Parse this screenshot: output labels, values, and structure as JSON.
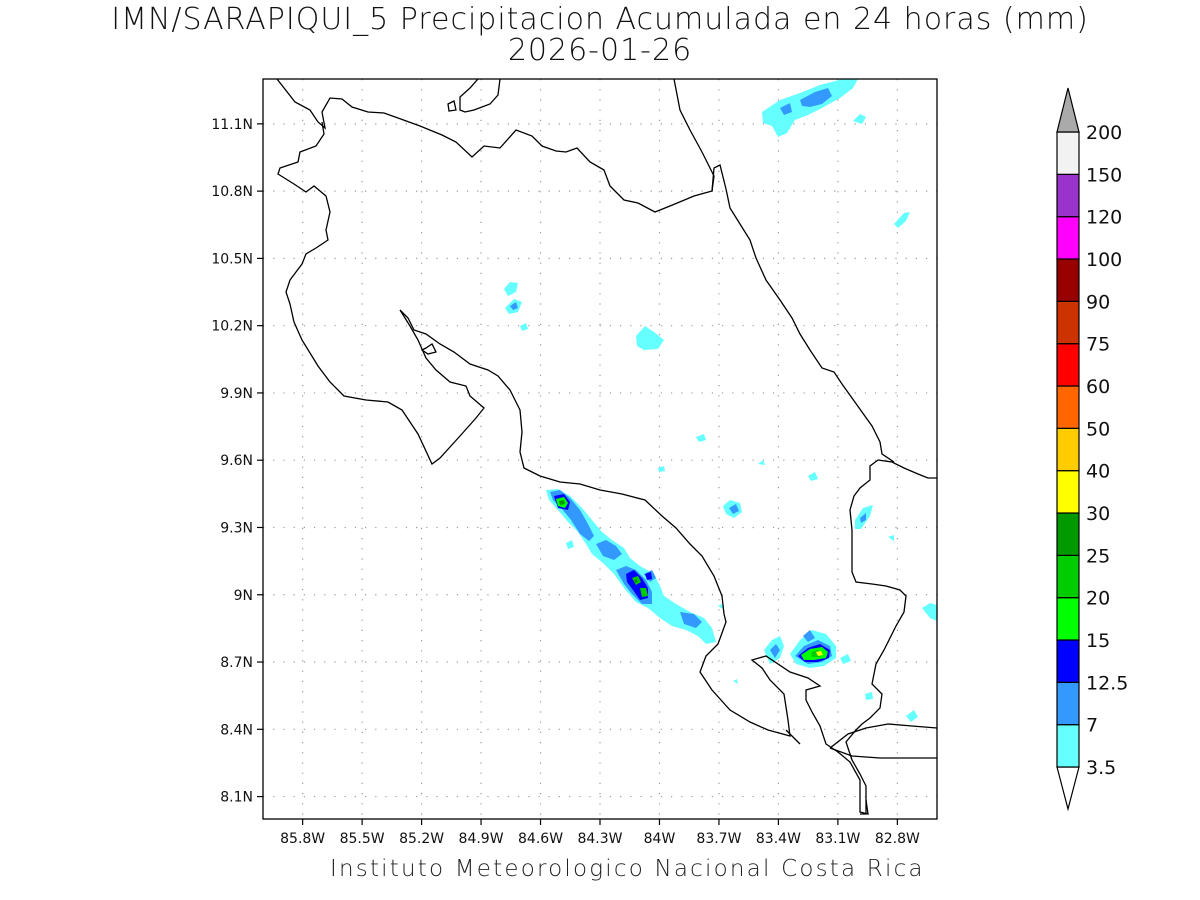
{
  "header": {
    "title": "IMN/SARAPIQUI_5 Precipitacion Acumulada en 24 horas (mm)",
    "date": "2026-01-26"
  },
  "map": {
    "lat_ticks": [
      "11.1N",
      "10.8N",
      "10.5N",
      "10.2N",
      "9.9N",
      "9.6N",
      "9.3N",
      "9N",
      "8.7N",
      "8.4N",
      "8.1N"
    ],
    "lon_ticks": [
      "85.8W",
      "85.5W",
      "85.2W",
      "84.9W",
      "84.6W",
      "84.3W",
      "84W",
      "83.7W",
      "83.4W",
      "83.1W",
      "82.8W"
    ],
    "lat_range": [
      8.0,
      11.3
    ],
    "lon_range": [
      -86.0,
      -82.6
    ],
    "grid": true
  },
  "legend": {
    "unit": "mm",
    "labels": [
      "3.5",
      "7",
      "12.5",
      "15",
      "20",
      "25",
      "30",
      "40",
      "50",
      "60",
      "75",
      "90",
      "100",
      "120",
      "150",
      "200"
    ],
    "colors": [
      "#66ffff",
      "#3399ff",
      "#0000ff",
      "#00ff00",
      "#00cc00",
      "#009900",
      "#ffff00",
      "#ffcc00",
      "#ff6600",
      "#ff0000",
      "#cc3300",
      "#990000",
      "#ff00ff",
      "#9933cc",
      "#f2f2f2",
      "#aaaaaa"
    ]
  },
  "footer": {
    "credit": "Instituto Meteorologico Nacional Costa Rica"
  }
}
